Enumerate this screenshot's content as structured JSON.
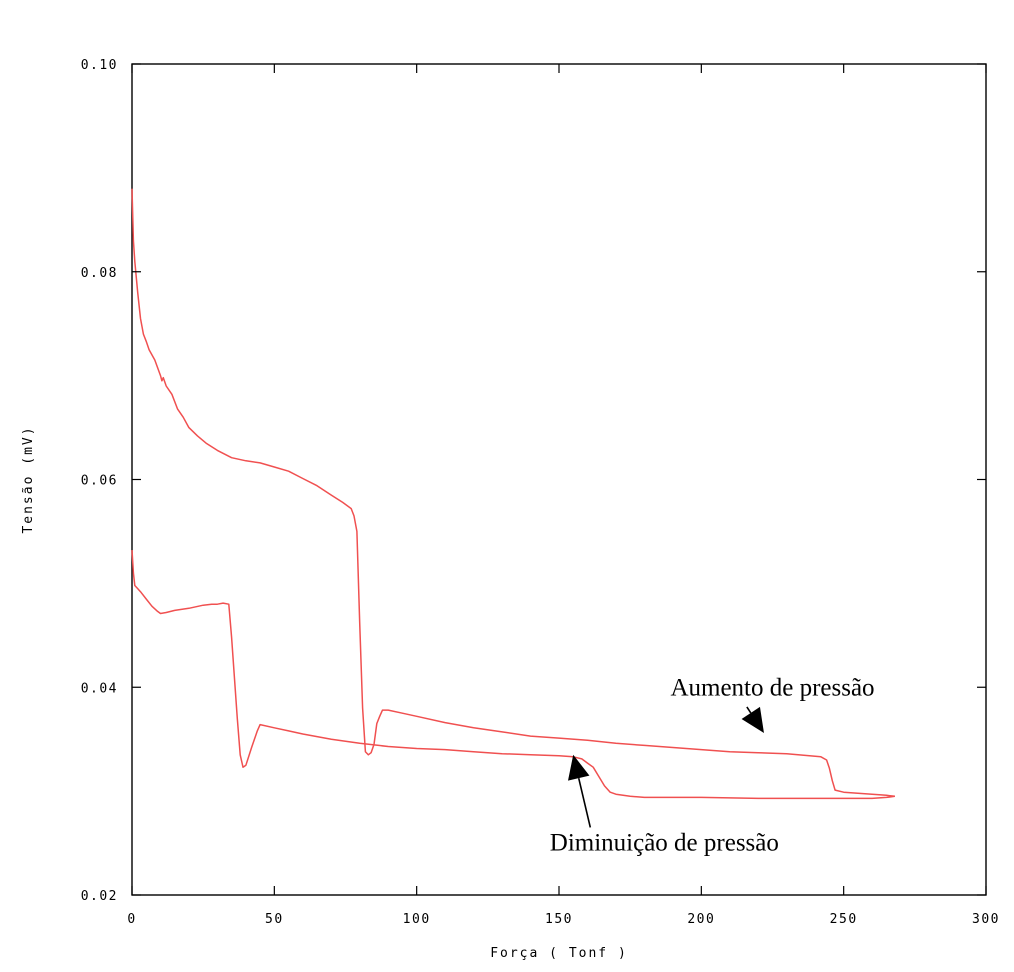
{
  "chart_data": {
    "type": "line",
    "title": "",
    "xlabel": "Força ( Tonf )",
    "ylabel": "Tensão (mV)",
    "xlim": [
      0,
      300
    ],
    "ylim": [
      0.02,
      0.1
    ],
    "x_ticks": [
      0,
      50,
      100,
      150,
      200,
      250,
      300
    ],
    "x_tick_labels": [
      "0",
      "50",
      "100",
      "150",
      "200",
      "250",
      "300"
    ],
    "y_ticks": [
      0.02,
      0.04,
      0.06,
      0.08,
      0.1
    ],
    "y_tick_labels": [
      "0.02",
      "0.04",
      "0.06",
      "0.08",
      "0.10"
    ],
    "grid": false,
    "line_color": "#f05050",
    "series": [
      {
        "x": [
          0,
          0.5,
          1,
          2,
          3,
          4,
          5,
          6,
          8,
          10,
          10.5,
          11,
          12,
          14,
          16,
          18,
          20,
          23,
          26,
          30,
          35,
          40,
          45,
          50,
          55,
          60,
          65,
          70,
          74,
          77,
          78,
          79,
          80,
          81,
          82,
          83,
          84,
          85,
          86,
          87,
          88,
          90,
          95,
          100,
          110,
          120,
          130,
          140,
          150,
          160,
          170,
          180,
          190,
          200,
          210,
          220,
          230,
          238,
          242,
          244,
          245,
          246,
          247,
          250,
          255,
          260,
          265,
          268
        ],
        "y": [
          0.088,
          0.083,
          0.081,
          0.078,
          0.0755,
          0.074,
          0.0733,
          0.0725,
          0.0715,
          0.07,
          0.0695,
          0.0698,
          0.069,
          0.0682,
          0.0668,
          0.066,
          0.065,
          0.0642,
          0.0635,
          0.0628,
          0.0621,
          0.0618,
          0.0616,
          0.0612,
          0.0608,
          0.0601,
          0.0594,
          0.0585,
          0.0578,
          0.0572,
          0.0565,
          0.055,
          0.0462,
          0.038,
          0.0338,
          0.0335,
          0.0337,
          0.0345,
          0.0365,
          0.0372,
          0.0378,
          0.0378,
          0.0375,
          0.0372,
          0.0366,
          0.0361,
          0.0357,
          0.0353,
          0.0351,
          0.0349,
          0.0346,
          0.0344,
          0.0342,
          0.034,
          0.0338,
          0.0337,
          0.0336,
          0.0334,
          0.0333,
          0.033,
          0.0322,
          0.031,
          0.0301,
          0.0299,
          0.0298,
          0.0297,
          0.0296,
          0.0295
        ]
      },
      {
        "x": [
          0,
          0.5,
          1,
          2,
          3,
          5,
          7,
          9,
          10,
          12,
          15,
          20,
          25,
          28,
          30,
          32,
          34,
          35,
          37,
          38,
          39,
          40,
          42,
          44,
          45,
          50,
          55,
          60,
          70,
          80,
          90,
          100,
          110,
          120,
          130,
          140,
          150,
          155,
          158,
          160,
          162,
          164,
          166,
          168,
          170,
          175,
          180,
          200,
          220,
          240,
          260,
          265,
          268
        ],
        "y": [
          0.0532,
          0.051,
          0.0498,
          0.0495,
          0.0492,
          0.0485,
          0.0478,
          0.0473,
          0.0471,
          0.0472,
          0.0474,
          0.0476,
          0.0479,
          0.048,
          0.048,
          0.0481,
          0.048,
          0.0448,
          0.037,
          0.0335,
          0.0323,
          0.0325,
          0.0342,
          0.0358,
          0.0364,
          0.0361,
          0.0358,
          0.0355,
          0.035,
          0.0346,
          0.0343,
          0.0341,
          0.034,
          0.0338,
          0.0336,
          0.0335,
          0.0334,
          0.0333,
          0.0331,
          0.0327,
          0.0323,
          0.0314,
          0.0305,
          0.0299,
          0.0297,
          0.0295,
          0.0294,
          0.0294,
          0.0293,
          0.0293,
          0.0293,
          0.0294,
          0.0295
        ]
      }
    ],
    "annotations": [
      {
        "text": "Aumento de pressão",
        "x": 225,
        "y": 0.0392,
        "arrow_from": [
          216,
          0.0381
        ],
        "arrow_to": [
          222,
          0.0356
        ]
      },
      {
        "text": "Diminuição de pressão",
        "x": 187,
        "y": 0.0243,
        "arrow_from": [
          161,
          0.0265
        ],
        "arrow_to": [
          155,
          0.0335
        ]
      }
    ]
  }
}
